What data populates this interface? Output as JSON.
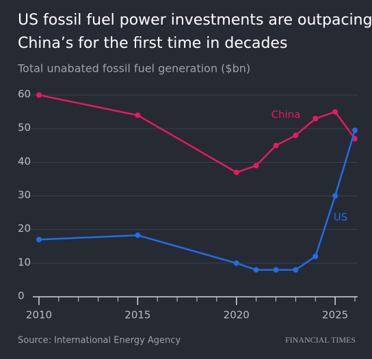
{
  "chart_data": {
    "type": "line",
    "title": [
      "US fossil fuel power investments are outpacing",
      "China’s for the first time in decades"
    ],
    "subtitle": "Total unabated fossil fuel generation ($bn)",
    "source": "Source: International Energy Agency",
    "brand": "FINANCIAL TIMES",
    "x": [
      2010,
      2015,
      2020,
      2021,
      2022,
      2023,
      2024,
      2025,
      2026
    ],
    "series": [
      {
        "name": "China",
        "color": "#e8195f",
        "values": [
          60,
          54,
          37,
          39,
          45,
          48,
          53,
          55,
          47
        ]
      },
      {
        "name": "US",
        "color": "#1f6ee8",
        "values": [
          17,
          18.3,
          10,
          8,
          8,
          8,
          12,
          30,
          49.5
        ]
      }
    ],
    "xlim": [
      2010,
      2026
    ],
    "xticks": [
      2010,
      2015,
      2020,
      2025
    ],
    "ylim": [
      0,
      60
    ],
    "yticks": [
      0,
      10,
      20,
      30,
      40,
      50,
      60
    ],
    "grid": true
  }
}
